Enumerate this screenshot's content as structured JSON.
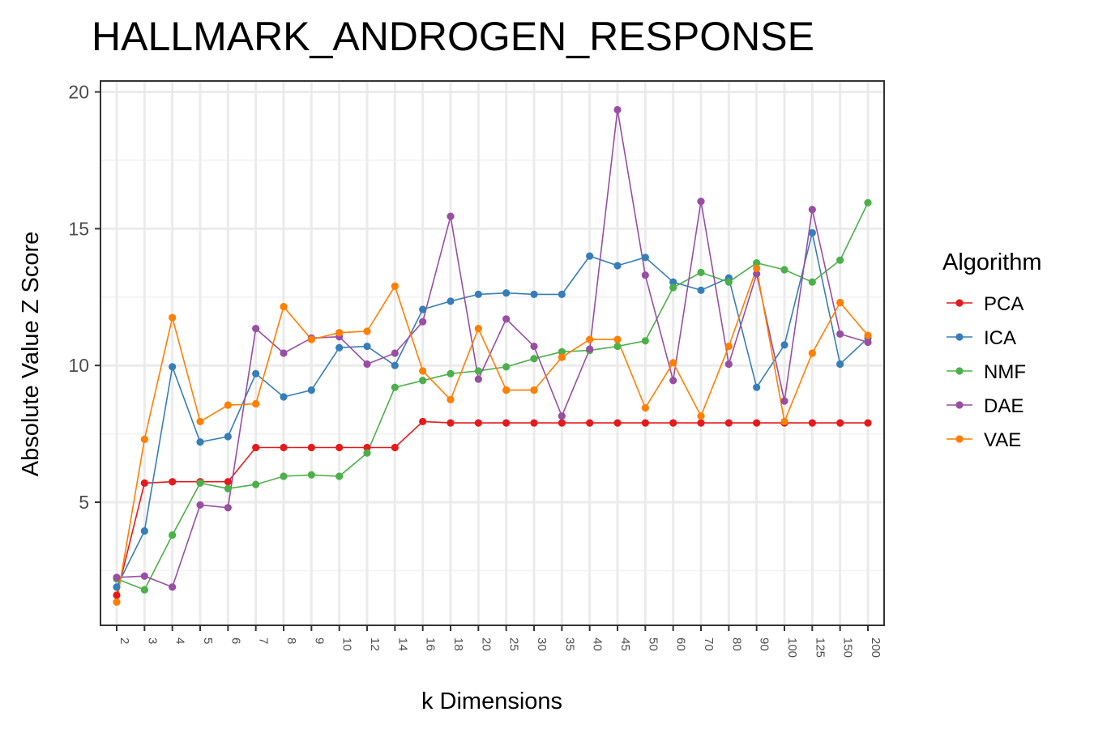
{
  "chart_data": {
    "type": "line",
    "title": "HALLMARK_ANDROGEN_RESPONSE",
    "xlabel": "k Dimensions",
    "ylabel": "Absolute Value Z Score",
    "x_scale": "categorical",
    "categories": [
      "2",
      "3",
      "4",
      "5",
      "6",
      "7",
      "8",
      "9",
      "10",
      "12",
      "14",
      "16",
      "18",
      "20",
      "25",
      "30",
      "35",
      "40",
      "45",
      "50",
      "60",
      "70",
      "80",
      "90",
      "100",
      "125",
      "150",
      "200"
    ],
    "ylim": [
      0.5,
      20.4
    ],
    "yticks": [
      5,
      10,
      15,
      20
    ],
    "grid": true,
    "legend": {
      "title": "Algorithm",
      "position": "right"
    },
    "series": [
      {
        "name": "PCA",
        "color": "#e41a1c",
        "values": [
          1.6,
          5.7,
          5.75,
          5.75,
          5.75,
          7.0,
          7.0,
          7.0,
          7.0,
          7.0,
          7.0,
          7.95,
          7.9,
          7.9,
          7.9,
          7.9,
          7.9,
          7.9,
          7.9,
          7.9,
          7.9,
          7.9,
          7.9,
          7.9,
          7.9,
          7.9,
          7.9,
          7.9
        ]
      },
      {
        "name": "ICA",
        "color": "#377eb8",
        "values": [
          1.9,
          3.95,
          9.95,
          7.2,
          7.4,
          9.7,
          8.85,
          9.1,
          10.65,
          10.7,
          10.0,
          12.05,
          12.35,
          12.6,
          12.65,
          12.6,
          12.6,
          14.0,
          13.65,
          13.95,
          13.05,
          12.75,
          13.2,
          9.2,
          10.75,
          14.85,
          10.05,
          11.0
        ]
      },
      {
        "name": "NMF",
        "color": "#4daf4a",
        "values": [
          2.2,
          1.8,
          3.8,
          5.7,
          5.5,
          5.65,
          5.95,
          6.0,
          5.95,
          6.8,
          9.2,
          9.45,
          9.7,
          9.8,
          9.95,
          10.25,
          10.5,
          10.55,
          10.7,
          10.9,
          12.85,
          13.4,
          13.05,
          13.75,
          13.5,
          13.05,
          13.85,
          15.95
        ]
      },
      {
        "name": "DAE",
        "color": "#984ea3",
        "values": [
          2.25,
          2.3,
          1.9,
          4.9,
          4.8,
          11.35,
          10.45,
          11.0,
          11.05,
          10.05,
          10.45,
          11.6,
          15.45,
          9.5,
          11.7,
          10.7,
          8.15,
          10.6,
          19.35,
          13.3,
          9.45,
          16.0,
          10.05,
          13.35,
          8.7,
          15.7,
          11.15,
          10.85
        ]
      },
      {
        "name": "VAE",
        "color": "#ff7f00",
        "values": [
          1.35,
          7.3,
          11.75,
          7.95,
          8.55,
          8.6,
          12.15,
          10.95,
          11.2,
          11.25,
          12.9,
          9.8,
          8.75,
          11.35,
          9.1,
          9.1,
          10.3,
          10.95,
          10.95,
          8.45,
          10.1,
          8.15,
          10.7,
          13.55,
          7.95,
          10.45,
          12.3,
          11.1
        ]
      }
    ]
  }
}
